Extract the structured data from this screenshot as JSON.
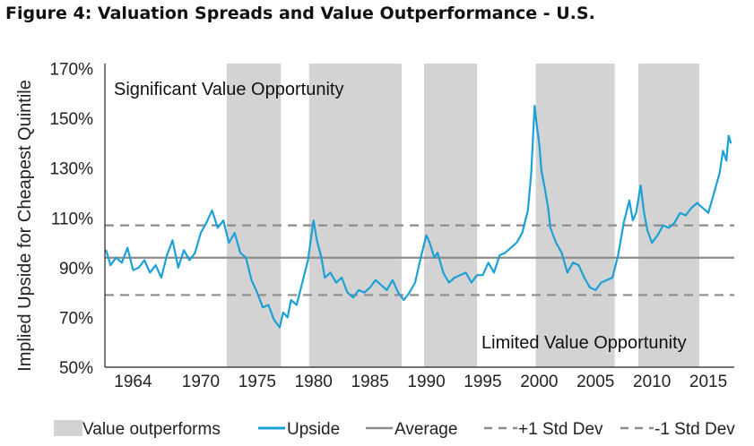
{
  "title": "Figure 4:  Valuation Spreads and Value Outperformance - U.S.",
  "colors": {
    "upside": "#1ba1d6",
    "average": "#8c8c8c",
    "std": "#8c8c8c",
    "shade": "#d3d3d3"
  },
  "chart_data": {
    "type": "line",
    "ylabel": "Implied Upside for Cheapest Quintile",
    "xlabel": "",
    "xlim": [
      1961.5,
      2017.3
    ],
    "ylim": [
      50,
      172
    ],
    "yticks": [
      50,
      70,
      90,
      110,
      130,
      150,
      170
    ],
    "ytick_labels": [
      "50%",
      "70%",
      "90%",
      "110%",
      "130%",
      "150%",
      "170%"
    ],
    "xticks": [
      1964,
      1970,
      1975,
      1980,
      1985,
      1990,
      1995,
      2000,
      2005,
      2010,
      2015
    ],
    "xtick_labels": [
      "1964",
      "1970",
      "1975",
      "1980",
      "1985",
      "1990",
      "1995",
      "2000",
      "2005",
      "2010",
      "2015"
    ],
    "average": 94,
    "plus_1_std": 107,
    "minus_1_std": 79,
    "value_outperforms_periods": [
      [
        1972.3,
        1977.1
      ],
      [
        1979.6,
        1987.8
      ],
      [
        1989.8,
        1994.5
      ],
      [
        1999.7,
        2006.7
      ],
      [
        2008.8,
        2014.2
      ]
    ],
    "annotations": {
      "upper": "Significant Value Opportunity",
      "lower": "Limited Value Opportunity"
    },
    "legend": {
      "shade": "Value outperforms",
      "upside": "Upside",
      "average": "Average",
      "plus_std": "+1 Std Dev",
      "minus_std": "-1 Std Dev"
    },
    "series": [
      {
        "name": "Upside",
        "x": [
          1961.6,
          1962.0,
          1962.5,
          1963.0,
          1963.5,
          1964.0,
          1964.5,
          1965.0,
          1965.5,
          1966.0,
          1966.5,
          1967.0,
          1967.5,
          1968.0,
          1968.5,
          1969.0,
          1969.5,
          1970.0,
          1970.5,
          1971.0,
          1971.5,
          1972.0,
          1972.5,
          1973.0,
          1973.5,
          1974.0,
          1974.5,
          1975.0,
          1975.5,
          1976.0,
          1976.5,
          1977.0,
          1977.3,
          1977.7,
          1978.0,
          1978.5,
          1979.0,
          1979.5,
          1980.0,
          1980.3,
          1980.7,
          1981.0,
          1981.5,
          1982.0,
          1982.5,
          1983.0,
          1983.5,
          1984.0,
          1984.5,
          1985.0,
          1985.5,
          1986.0,
          1986.5,
          1987.0,
          1987.5,
          1988.0,
          1988.5,
          1989.0,
          1989.5,
          1990.0,
          1990.3,
          1990.7,
          1991.0,
          1991.5,
          1992.0,
          1992.5,
          1993.0,
          1993.5,
          1994.0,
          1994.5,
          1995.0,
          1995.5,
          1996.0,
          1996.5,
          1997.0,
          1997.5,
          1998.0,
          1998.5,
          1999.0,
          1999.3,
          1999.6,
          1999.8,
          2000.0,
          2000.2,
          2000.5,
          2000.8,
          2001.0,
          2001.5,
          2002.0,
          2002.5,
          2003.0,
          2003.5,
          2004.0,
          2004.5,
          2005.0,
          2005.5,
          2006.0,
          2006.5,
          2007.0,
          2007.5,
          2008.0,
          2008.3,
          2008.6,
          2009.0,
          2009.3,
          2009.6,
          2010.0,
          2010.5,
          2011.0,
          2011.5,
          2012.0,
          2012.5,
          2013.0,
          2013.5,
          2014.0,
          2014.5,
          2015.0,
          2015.5,
          2016.0,
          2016.3,
          2016.6,
          2016.8,
          2017.0
        ],
        "values": [
          97,
          91,
          94,
          92,
          98,
          89,
          90,
          93,
          88,
          91,
          86,
          95,
          101,
          90,
          97,
          93,
          96,
          104,
          108,
          113,
          106,
          109,
          100,
          104,
          96,
          94,
          85,
          80,
          74,
          75,
          69,
          66,
          72,
          70,
          77,
          75,
          84,
          93,
          109,
          101,
          94,
          86,
          88,
          84,
          86,
          80,
          78,
          81,
          80,
          82,
          85,
          83,
          81,
          85,
          80,
          77,
          80,
          84,
          94,
          103,
          100,
          94,
          96,
          88,
          84,
          86,
          87,
          88,
          84,
          87,
          87,
          92,
          88,
          95,
          96,
          98,
          100,
          104,
          113,
          128,
          155,
          147,
          140,
          129,
          122,
          114,
          106,
          100,
          96,
          88,
          92,
          91,
          86,
          82,
          81,
          84,
          85,
          86,
          95,
          108,
          117,
          109,
          112,
          123,
          112,
          105,
          100,
          103,
          107,
          106,
          108,
          112,
          111,
          114,
          116,
          114,
          112,
          120,
          128,
          137,
          133,
          143,
          140
        ]
      }
    ]
  }
}
